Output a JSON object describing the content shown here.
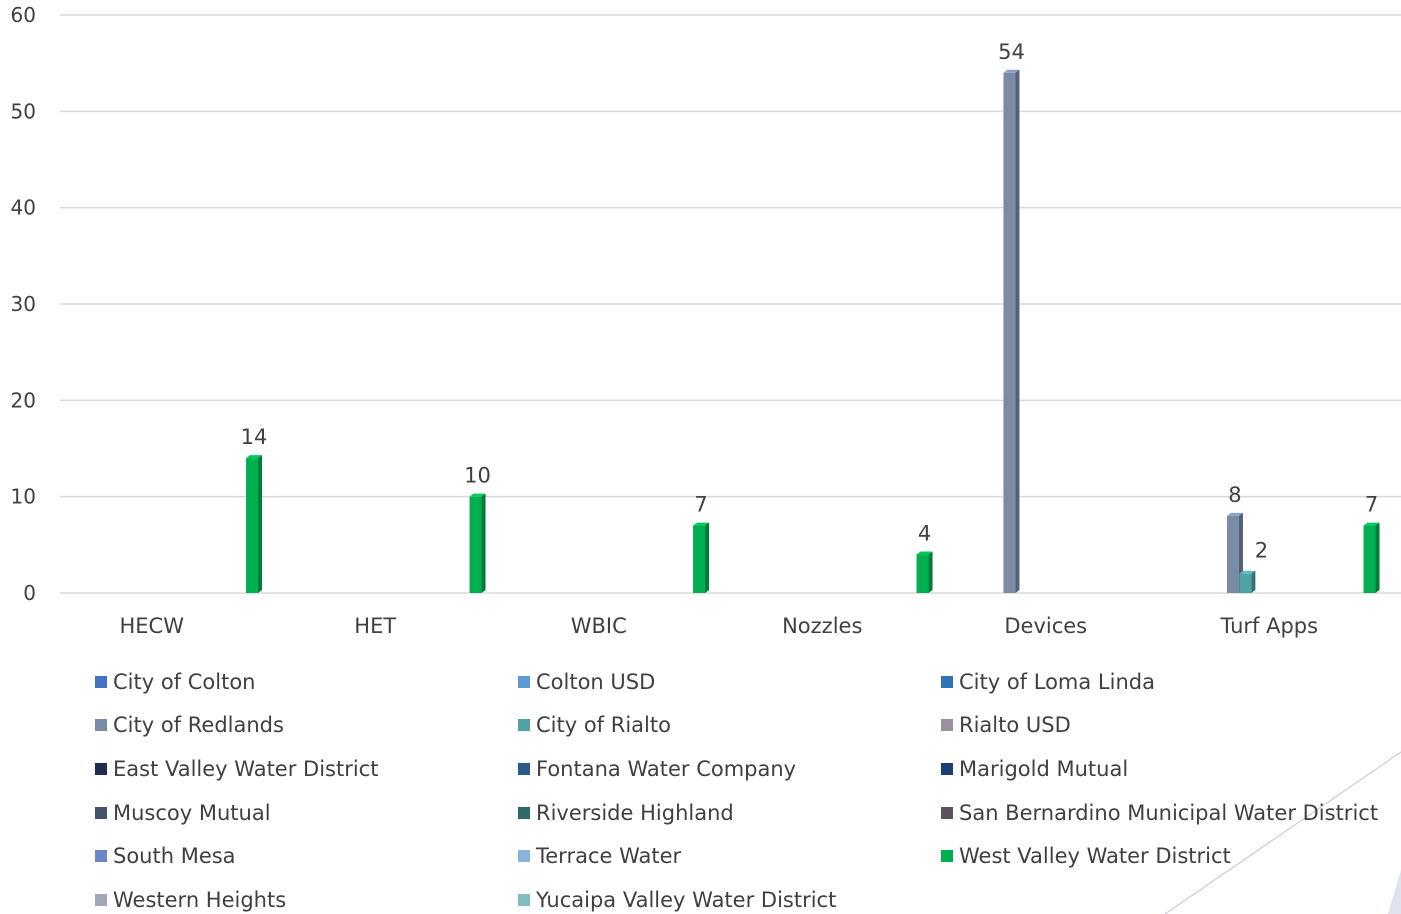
{
  "chart_data": {
    "type": "bar",
    "categories": [
      "HECW",
      "HET",
      "WBIC",
      "Nozzles",
      "Devices",
      "Turf Apps"
    ],
    "ylim": [
      0,
      60
    ],
    "yticks": [
      0,
      10,
      20,
      30,
      40,
      50,
      60
    ],
    "grid": true,
    "legend_position": "bottom",
    "series": [
      {
        "name": "City of Colton",
        "color": "#4472C4",
        "values": [
          0,
          0,
          0,
          0,
          0,
          0
        ]
      },
      {
        "name": "Colton USD",
        "color": "#5B9BD5",
        "values": [
          0,
          0,
          0,
          0,
          0,
          0
        ]
      },
      {
        "name": "City of Loma Linda",
        "color": "#2E75B6",
        "values": [
          0,
          0,
          0,
          0,
          0,
          0
        ]
      },
      {
        "name": "City of Redlands",
        "color": "#7A8BA6",
        "values": [
          0,
          0,
          0,
          0,
          54,
          8
        ]
      },
      {
        "name": "City of Rialto",
        "color": "#4FA3A5",
        "values": [
          0,
          0,
          0,
          0,
          0,
          2
        ]
      },
      {
        "name": "Rialto USD",
        "color": "#9C8FA0",
        "values": [
          0,
          0,
          0,
          0,
          0,
          0
        ]
      },
      {
        "name": "East Valley Water District",
        "color": "#1F2D4F",
        "values": [
          0,
          0,
          0,
          0,
          0,
          0
        ]
      },
      {
        "name": "Fontana Water Company",
        "color": "#2B5A8A",
        "values": [
          0,
          0,
          0,
          0,
          0,
          0
        ]
      },
      {
        "name": "Marigold Mutual",
        "color": "#1B3F73",
        "values": [
          0,
          0,
          0,
          0,
          0,
          0
        ]
      },
      {
        "name": "Muscoy Mutual",
        "color": "#44546A",
        "values": [
          0,
          0,
          0,
          0,
          0,
          0
        ]
      },
      {
        "name": "Riverside Highland",
        "color": "#2F6B6B",
        "values": [
          0,
          0,
          0,
          0,
          0,
          0
        ]
      },
      {
        "name": "San Bernardino Municipal Water District",
        "color": "#5E5160",
        "values": [
          0,
          0,
          0,
          0,
          0,
          0
        ]
      },
      {
        "name": "South Mesa",
        "color": "#6F86C6",
        "values": [
          0,
          0,
          0,
          0,
          0,
          0
        ]
      },
      {
        "name": "Terrace Water",
        "color": "#8AB4E0",
        "values": [
          0,
          0,
          0,
          0,
          0,
          0
        ]
      },
      {
        "name": "West Valley Water District",
        "color": "#00B050",
        "values": [
          14,
          10,
          7,
          4,
          0,
          7
        ]
      },
      {
        "name": "Western Heights",
        "color": "#A0A8B8",
        "values": [
          0,
          0,
          0,
          0,
          0,
          0
        ]
      },
      {
        "name": "Yucaipa Valley Water District",
        "color": "#7FBFC0",
        "values": [
          0,
          0,
          0,
          0,
          0,
          0
        ]
      }
    ],
    "data_labels": [
      {
        "category": "HECW",
        "series": "West Valley Water District",
        "text": "14"
      },
      {
        "category": "HET",
        "series": "West Valley Water District",
        "text": "10"
      },
      {
        "category": "WBIC",
        "series": "West Valley Water District",
        "text": "7"
      },
      {
        "category": "Nozzles",
        "series": "West Valley Water District",
        "text": "4"
      },
      {
        "category": "Devices",
        "series": "City of Redlands",
        "text": "54"
      },
      {
        "category": "Turf Apps",
        "series": "City of Redlands",
        "text": "8"
      },
      {
        "category": "Turf Apps",
        "series": "City of Rialto",
        "text": "2"
      },
      {
        "category": "Turf Apps",
        "series": "West Valley Water District",
        "text": "7"
      }
    ]
  }
}
